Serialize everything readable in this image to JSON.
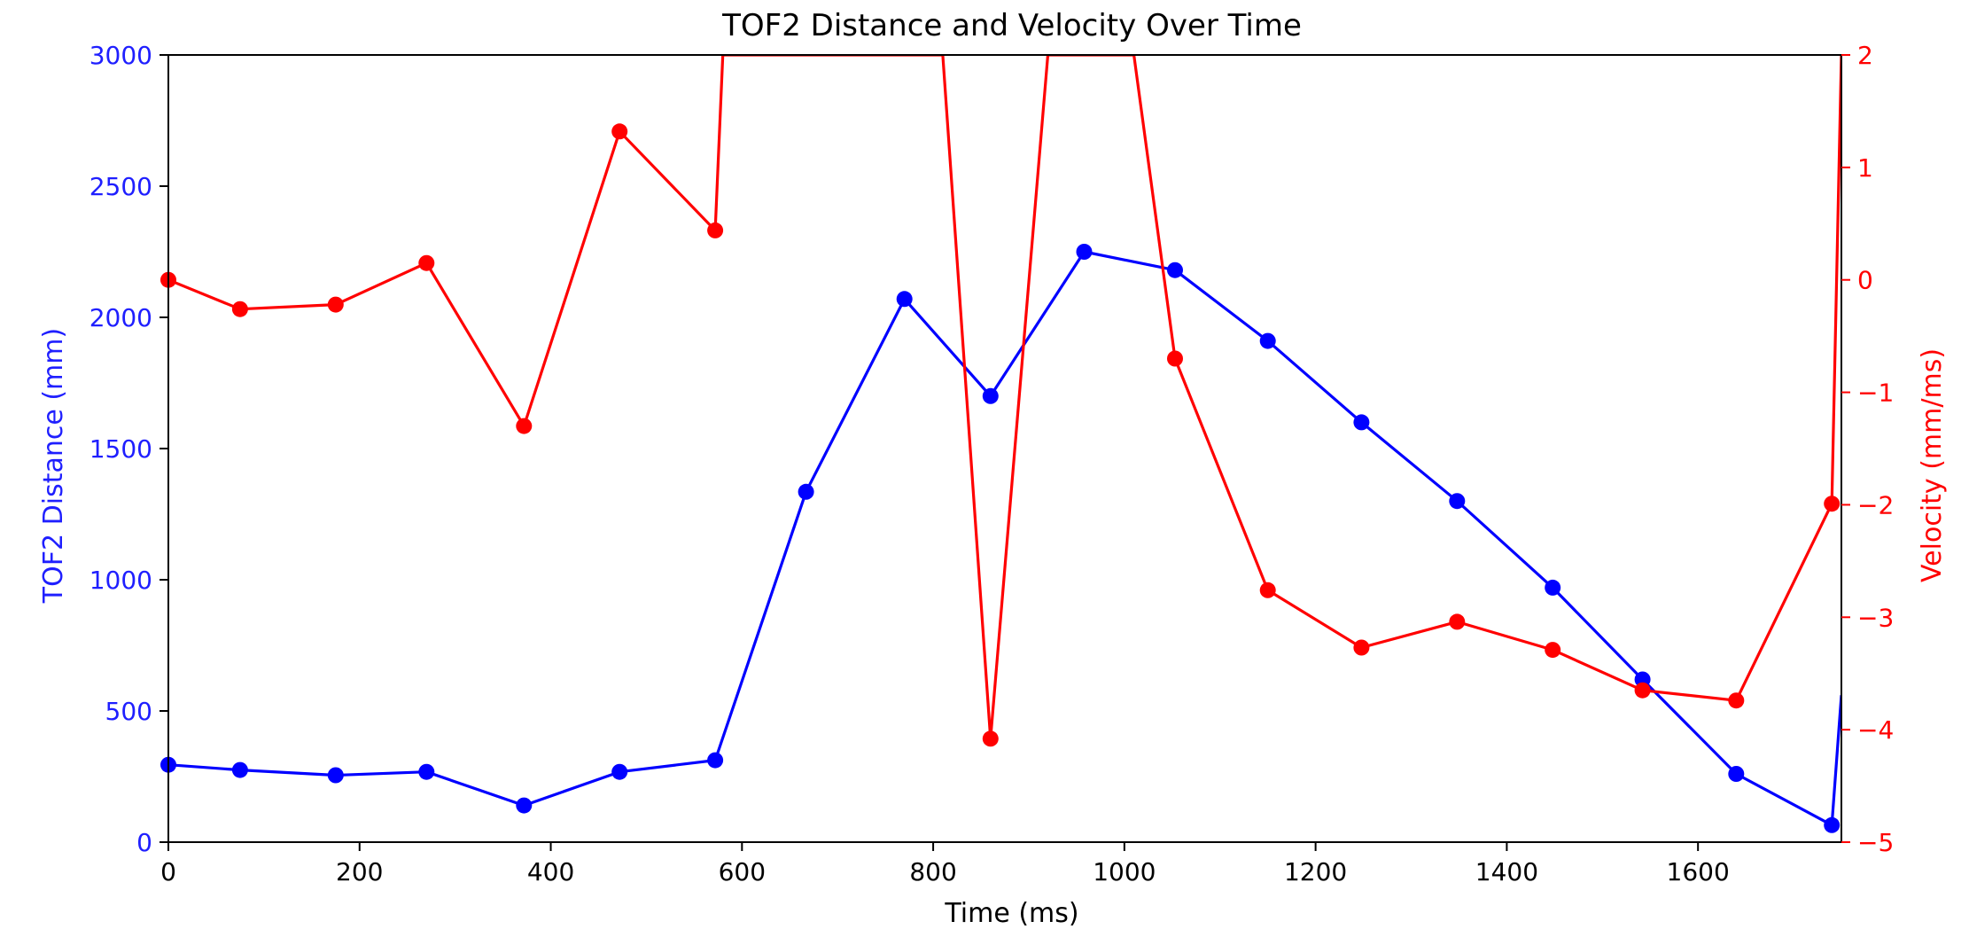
{
  "chart_data": {
    "type": "line",
    "title": "TOF2 Distance and Velocity Over Time",
    "xlabel": "Time (ms)",
    "xlim": [
      0,
      1750
    ],
    "xticks": [
      0,
      200,
      400,
      600,
      800,
      1000,
      1200,
      1400,
      1600
    ],
    "grid": false,
    "left_axis": {
      "label": "TOF2 Distance (mm)",
      "color": "#1f1fff",
      "ylim": [
        0,
        3000
      ],
      "ticks": [
        0,
        500,
        1000,
        1500,
        2000,
        2500,
        3000
      ]
    },
    "right_axis": {
      "label": "Velocity (mm/ms)",
      "color": "#ff0000",
      "ylim": [
        -5,
        2
      ],
      "ticks": [
        -5,
        -4,
        -3,
        -2,
        -1,
        0,
        1,
        2
      ],
      "tick_labels": [
        "−5",
        "−4",
        "−3",
        "−2",
        "−1",
        "0",
        "1",
        "2"
      ]
    },
    "series": [
      {
        "axis": "left",
        "color": "#0000ff",
        "x": [
          0,
          75,
          175,
          270,
          372,
          472,
          572,
          667,
          770,
          860,
          958,
          1053,
          1150,
          1248,
          1348,
          1448,
          1542,
          1640,
          1740,
          1750
        ],
        "y": [
          295,
          275,
          255,
          268,
          140,
          268,
          312,
          1335,
          2070,
          1700,
          2250,
          2180,
          1910,
          1600,
          1300,
          970,
          620,
          260,
          65,
          560
        ],
        "markers_count": 19
      },
      {
        "axis": "right",
        "color": "#ff0000",
        "x": [
          0,
          75,
          175,
          270,
          372,
          472,
          572,
          580,
          810,
          860,
          920,
          1010,
          1053,
          1150,
          1248,
          1348,
          1448,
          1542,
          1640,
          1740,
          1750
        ],
        "y": [
          0.0,
          -0.26,
          -0.22,
          0.15,
          -1.3,
          1.32,
          0.44,
          2.0,
          2.0,
          -4.08,
          2.0,
          2.0,
          -0.7,
          -2.76,
          -3.27,
          -3.04,
          -3.29,
          -3.65,
          -3.74,
          -1.99,
          2.0
        ],
        "markers": [
          true,
          true,
          true,
          true,
          true,
          true,
          true,
          false,
          false,
          true,
          false,
          false,
          true,
          true,
          true,
          true,
          true,
          true,
          true,
          true,
          false
        ]
      }
    ]
  }
}
